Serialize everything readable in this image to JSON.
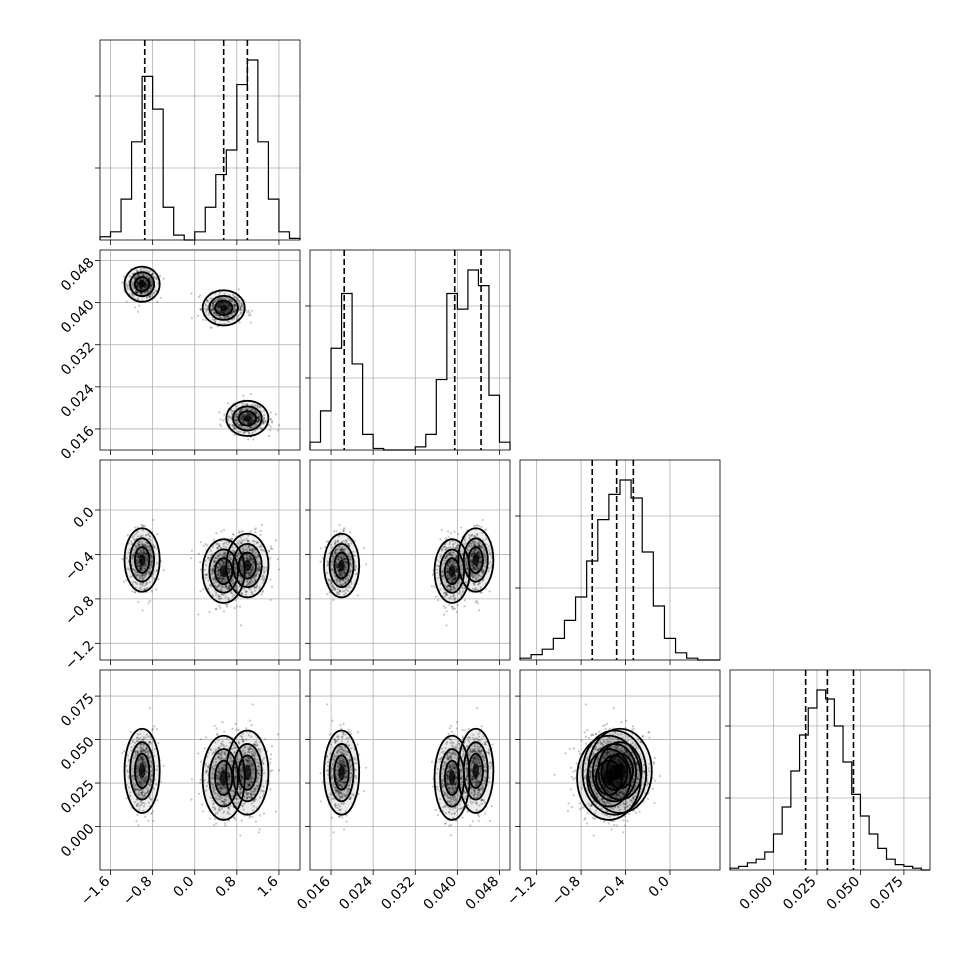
{
  "chart_data": {
    "type": "corner",
    "parameters": [
      {
        "range": [
          -1.8,
          2.0
        ],
        "ticks": [
          -1.6,
          -0.8,
          0.0,
          0.8,
          1.6
        ],
        "tick_labels": [
          "−1.6",
          "−0.8",
          "0.0",
          "0.8",
          "1.6"
        ],
        "quantiles": [
          -0.95,
          0.55,
          1.0
        ],
        "histogram": {
          "edges": [
            -1.8,
            -1.6,
            -1.4,
            -1.2,
            -1.0,
            -0.8,
            -0.6,
            -0.4,
            -0.2,
            0.0,
            0.2,
            0.4,
            0.6,
            0.8,
            1.0,
            1.2,
            1.4,
            1.6,
            1.8,
            2.0
          ],
          "counts": [
            0.02,
            0.05,
            0.25,
            0.6,
            1.0,
            0.8,
            0.2,
            0.03,
            0.0,
            0.05,
            0.2,
            0.4,
            0.55,
            0.95,
            1.1,
            0.6,
            0.25,
            0.05,
            0.01
          ]
        }
      },
      {
        "range": [
          0.012,
          0.05
        ],
        "ticks": [
          0.016,
          0.024,
          0.032,
          0.04,
          0.048
        ],
        "tick_labels": [
          "0.016",
          "0.024",
          "0.032",
          "0.040",
          "0.048"
        ],
        "quantiles": [
          0.0185,
          0.0395,
          0.0445
        ],
        "histogram": {
          "edges": [
            0.012,
            0.014,
            0.016,
            0.018,
            0.02,
            0.022,
            0.024,
            0.026,
            0.028,
            0.03,
            0.032,
            0.034,
            0.036,
            0.038,
            0.04,
            0.042,
            0.044,
            0.046,
            0.048,
            0.05
          ],
          "counts": [
            0.05,
            0.25,
            0.65,
            1.0,
            0.55,
            0.1,
            0.01,
            0.0,
            0.0,
            0.0,
            0.02,
            0.1,
            0.45,
            1.0,
            0.9,
            1.15,
            1.05,
            0.35,
            0.05
          ]
        }
      },
      {
        "range": [
          -1.35,
          0.45
        ],
        "ticks": [
          -1.2,
          -0.8,
          -0.4,
          0.0
        ],
        "tick_labels": [
          "−1.2",
          "−0.8",
          "−0.4",
          "0.0"
        ],
        "quantiles": [
          -0.7,
          -0.48,
          -0.33
        ],
        "histogram": {
          "edges": [
            -1.35,
            -1.25,
            -1.15,
            -1.05,
            -0.95,
            -0.85,
            -0.75,
            -0.65,
            -0.55,
            -0.45,
            -0.35,
            -0.25,
            -0.15,
            -0.05,
            0.05,
            0.15,
            0.25,
            0.35,
            0.45
          ],
          "counts": [
            0.01,
            0.03,
            0.06,
            0.12,
            0.22,
            0.35,
            0.55,
            0.78,
            0.92,
            1.0,
            0.9,
            0.6,
            0.3,
            0.12,
            0.04,
            0.01,
            0.0,
            0.0
          ]
        }
      },
      {
        "range": [
          -0.025,
          0.09
        ],
        "ticks": [
          0.0,
          0.025,
          0.05,
          0.075
        ],
        "tick_labels": [
          "0.000",
          "0.025",
          "0.050",
          "0.075"
        ],
        "quantiles": [
          0.0185,
          0.031,
          0.046
        ],
        "histogram": {
          "edges": [
            -0.025,
            -0.02,
            -0.015,
            -0.01,
            -0.005,
            0.0,
            0.005,
            0.01,
            0.015,
            0.02,
            0.025,
            0.03,
            0.035,
            0.04,
            0.045,
            0.05,
            0.055,
            0.06,
            0.065,
            0.07,
            0.075,
            0.08,
            0.085,
            0.09
          ],
          "counts": [
            0.01,
            0.02,
            0.04,
            0.06,
            0.1,
            0.2,
            0.35,
            0.55,
            0.75,
            0.9,
            1.0,
            0.95,
            0.8,
            0.6,
            0.42,
            0.3,
            0.2,
            0.12,
            0.06,
            0.03,
            0.02,
            0.01,
            0.0
          ]
        }
      }
    ],
    "clusters": [
      {
        "x": -1.0,
        "y": 0.0435,
        "z": -0.45,
        "w": 0.032
      },
      {
        "x": 0.55,
        "y": 0.039,
        "z": -0.55,
        "w": 0.028
      },
      {
        "x": 1.0,
        "y": 0.018,
        "z": -0.5,
        "w": 0.031
      }
    ],
    "grid": true
  }
}
